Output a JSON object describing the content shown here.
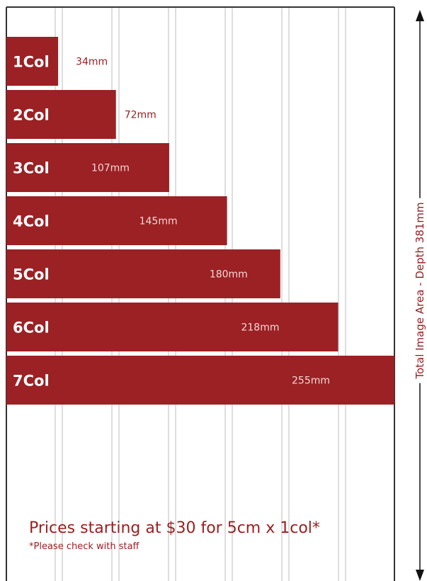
{
  "colors": {
    "bar": "#9b2124",
    "accent_text": "#9b1f22",
    "guide_line": "#d3d3d3",
    "frame": "#333333",
    "bar_label": "#ffffff",
    "value_label": "#f3d6d6"
  },
  "footer": {
    "price_text": "Prices starting at $30 for 5cm x 1col*",
    "note_text": "*Please check with staff"
  },
  "depth_label": "Total Image Area - Depth 381mm",
  "chart_data": {
    "type": "bar",
    "orientation": "horizontal",
    "categories": [
      "1Col",
      "2Col",
      "3Col",
      "4Col",
      "5Col",
      "6Col",
      "7Col"
    ],
    "values": [
      34,
      72,
      107,
      145,
      180,
      218,
      255
    ],
    "value_labels": [
      "34mm",
      "72mm",
      "107mm",
      "145mm",
      "180mm",
      "218mm",
      "255mm"
    ],
    "unit": "mm",
    "xlim": [
      0,
      255
    ],
    "grid": true
  }
}
